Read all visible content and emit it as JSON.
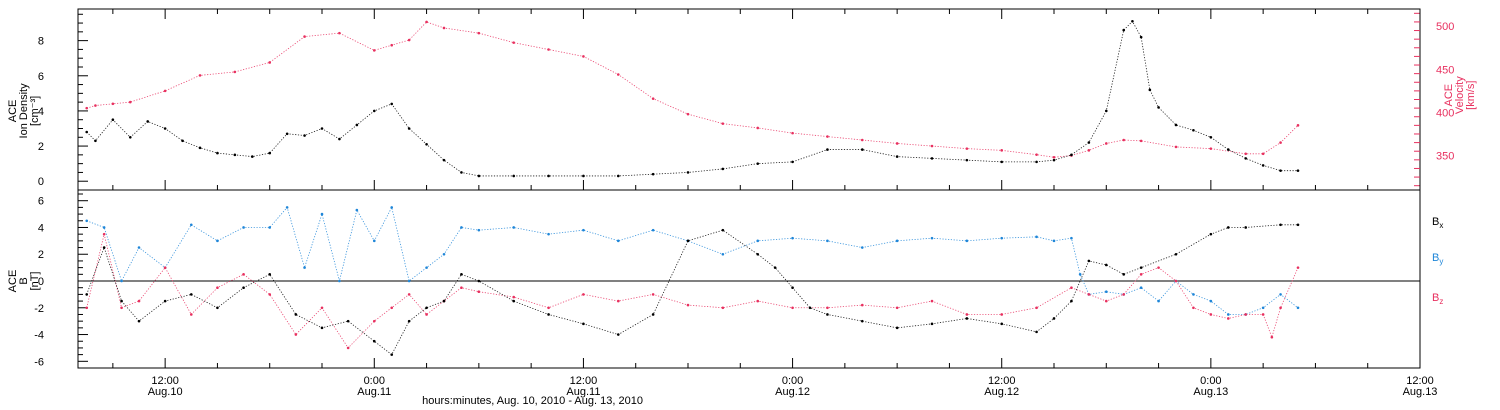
{
  "colors": {
    "density": "#000000",
    "velocity": "#e8305f",
    "bx": "#000000",
    "by": "#1f86d8",
    "bz": "#e8305f"
  },
  "xlabel": "hours:minutes, Aug. 10, 2010 - Aug. 13, 2010",
  "x_ticks": [
    {
      "hour": 12,
      "time": "12:00",
      "date": "Aug.10"
    },
    {
      "hour": 24,
      "time": "0:00",
      "date": "Aug.11"
    },
    {
      "hour": 36,
      "time": "12:00",
      "date": "Aug.11"
    },
    {
      "hour": 48,
      "time": "0:00",
      "date": "Aug.12"
    },
    {
      "hour": 60,
      "time": "12:00",
      "date": "Aug.12"
    },
    {
      "hour": 72,
      "time": "0:00",
      "date": "Aug.13"
    },
    {
      "hour": 84,
      "time": "12:00",
      "date": "Aug.13"
    }
  ],
  "chart_data": [
    {
      "type": "scatter",
      "panel": "plasma",
      "title": "",
      "xlabel": "hours:minutes, Aug. 10, 2010 - Aug. 13, 2010",
      "x_unit": "hours since Aug.10 0:00",
      "xlim": [
        7,
        84
      ],
      "left_axis": {
        "label_lines": [
          "ACE",
          "Ion Density",
          "[cm⁻³]"
        ],
        "ylim": [
          -0.5,
          9.8
        ],
        "ticks": [
          0,
          2,
          4,
          6,
          8
        ]
      },
      "right_axis": {
        "label_lines": [
          "ACE",
          "Velocity",
          "[km/s]"
        ],
        "ylim": [
          310,
          520
        ],
        "ticks": [
          350,
          400,
          450,
          500
        ]
      },
      "grid": false,
      "series": [
        {
          "name": "Ion Density",
          "axis": "left",
          "x": [
            7.5,
            8,
            9,
            10,
            11,
            12,
            13,
            14,
            15,
            16,
            17,
            18,
            19,
            20,
            21,
            22,
            23,
            24,
            25,
            26,
            27,
            28,
            29,
            30,
            32,
            34,
            36,
            38,
            40,
            42,
            44,
            46,
            48,
            50,
            52,
            54,
            56,
            58,
            60,
            62,
            63,
            64,
            65,
            66,
            67,
            67.5,
            68,
            68.5,
            69,
            70,
            71,
            72,
            73,
            74,
            75,
            76,
            77
          ],
          "y": [
            2.8,
            2.3,
            3.5,
            2.5,
            3.4,
            3.0,
            2.3,
            1.9,
            1.6,
            1.5,
            1.4,
            1.6,
            2.7,
            2.6,
            3.0,
            2.4,
            3.2,
            4.0,
            4.4,
            3.0,
            2.1,
            1.2,
            0.5,
            0.3,
            0.3,
            0.3,
            0.3,
            0.3,
            0.4,
            0.5,
            0.7,
            1.0,
            1.1,
            1.8,
            1.8,
            1.4,
            1.3,
            1.2,
            1.1,
            1.1,
            1.2,
            1.5,
            2.2,
            4.0,
            8.6,
            9.1,
            8.2,
            5.2,
            4.2,
            3.2,
            2.9,
            2.5,
            1.8,
            1.3,
            0.9,
            0.6,
            0.6
          ]
        },
        {
          "name": "Velocity",
          "axis": "right",
          "x": [
            7.5,
            8,
            9,
            10,
            12,
            14,
            16,
            18,
            20,
            22,
            24,
            25,
            26,
            27,
            28,
            30,
            32,
            34,
            36,
            38,
            40,
            42,
            44,
            46,
            48,
            50,
            52,
            54,
            56,
            58,
            60,
            62,
            63,
            64,
            65,
            66,
            67,
            68,
            70,
            72,
            74,
            75,
            76,
            77
          ],
          "y": [
            405,
            408,
            410,
            412,
            425,
            443,
            447,
            458,
            488,
            492,
            472,
            478,
            484,
            505,
            498,
            492,
            481,
            473,
            465,
            444,
            416,
            398,
            387,
            382,
            376,
            372,
            368,
            364,
            361,
            358,
            356,
            351,
            348,
            350,
            356,
            364,
            368,
            367,
            360,
            358,
            352,
            352,
            365,
            385
          ]
        }
      ]
    },
    {
      "type": "scatter",
      "panel": "magnetic_field",
      "title": "",
      "xlabel": "hours:minutes, Aug. 10, 2010 - Aug. 13, 2010",
      "x_unit": "hours since Aug.10 0:00",
      "xlim": [
        7,
        84
      ],
      "ylabel_lines": [
        "ACE",
        "B",
        "[nT]"
      ],
      "ylim": [
        -6.5,
        6.8
      ],
      "ticks": [
        -6,
        -4,
        -2,
        0,
        2,
        4,
        6
      ],
      "zero_line": true,
      "legend": [
        "Bx",
        "By",
        "Bz"
      ],
      "legend_position": "right",
      "grid": false,
      "series": [
        {
          "name": "Bx",
          "x": [
            7.5,
            8.5,
            9.5,
            10.5,
            12,
            13.5,
            15,
            16.5,
            18,
            19.5,
            21,
            22.5,
            24,
            25,
            26,
            27,
            28,
            29,
            30,
            32,
            34,
            36,
            38,
            40,
            42,
            44,
            46,
            47,
            48,
            49,
            50,
            52,
            54,
            56,
            58,
            60,
            62,
            63,
            64,
            65,
            66,
            67,
            68,
            70,
            72,
            73,
            74,
            76,
            77
          ],
          "y": [
            -1.0,
            2.5,
            -1.5,
            -3.0,
            -1.5,
            -1.0,
            -2.0,
            -0.5,
            0.5,
            -2.5,
            -3.5,
            -3.0,
            -4.5,
            -5.5,
            -3.0,
            -2.0,
            -1.5,
            0.5,
            0.0,
            -1.5,
            -2.5,
            -3.2,
            -4.0,
            -2.5,
            3.0,
            3.8,
            2.0,
            1.0,
            -0.5,
            -2.0,
            -2.5,
            -3.0,
            -3.5,
            -3.2,
            -2.8,
            -3.2,
            -3.8,
            -2.8,
            -1.5,
            1.5,
            1.2,
            0.5,
            1.0,
            2.0,
            3.5,
            4.0,
            4.0,
            4.2,
            4.2
          ]
        },
        {
          "name": "By",
          "x": [
            7.5,
            8.5,
            9.5,
            10.5,
            12,
            13.5,
            15,
            16.5,
            18,
            19,
            20,
            21,
            22,
            23,
            24,
            25,
            26,
            27,
            28,
            29,
            30,
            32,
            34,
            36,
            38,
            40,
            42,
            44,
            46,
            48,
            50,
            52,
            54,
            56,
            58,
            60,
            62,
            63,
            64,
            64.5,
            65,
            66,
            67,
            68,
            69,
            70,
            71,
            72,
            73,
            74,
            75,
            76,
            77
          ],
          "y": [
            4.5,
            4.0,
            0.0,
            2.5,
            1.0,
            4.2,
            3.0,
            4.0,
            4.0,
            5.5,
            1.0,
            5.0,
            0.0,
            5.3,
            3.0,
            5.5,
            0.0,
            1.0,
            2.0,
            4.0,
            3.8,
            4.0,
            3.5,
            3.8,
            3.0,
            3.8,
            3.0,
            2.0,
            3.0,
            3.2,
            3.0,
            2.5,
            3.0,
            3.2,
            3.0,
            3.2,
            3.3,
            3.0,
            3.2,
            0.5,
            -1.0,
            -0.8,
            -1.0,
            -0.5,
            -1.5,
            0.0,
            -1.0,
            -1.5,
            -2.5,
            -2.5,
            -2.0,
            -1.0,
            -2.0
          ]
        },
        {
          "name": "Bz",
          "x": [
            7.5,
            8.5,
            9.5,
            10.5,
            12,
            13.5,
            15,
            16.5,
            18,
            19.5,
            21,
            22.5,
            24,
            25,
            26,
            27,
            28,
            29,
            30,
            32,
            34,
            36,
            38,
            40,
            42,
            44,
            46,
            48,
            50,
            52,
            54,
            56,
            58,
            60,
            62,
            64,
            65,
            66,
            67,
            68,
            69,
            70,
            71,
            72,
            73,
            74,
            75,
            75.5,
            76,
            77
          ],
          "y": [
            -2.0,
            3.5,
            -2.0,
            -1.5,
            1.0,
            -2.5,
            -0.5,
            0.5,
            -1.0,
            -4.0,
            -2.0,
            -5.0,
            -3.0,
            -2.0,
            -1.0,
            -2.5,
            -1.5,
            -0.5,
            -0.8,
            -1.2,
            -2.0,
            -1.0,
            -1.5,
            -1.0,
            -1.8,
            -2.0,
            -1.5,
            -2.0,
            -2.0,
            -1.8,
            -2.0,
            -1.5,
            -2.5,
            -2.5,
            -2.0,
            -0.5,
            -1.0,
            -1.5,
            -1.0,
            0.5,
            1.0,
            0.0,
            -2.0,
            -2.5,
            -2.8,
            -2.5,
            -2.5,
            -4.2,
            -2.0,
            1.0
          ]
        }
      ]
    }
  ]
}
